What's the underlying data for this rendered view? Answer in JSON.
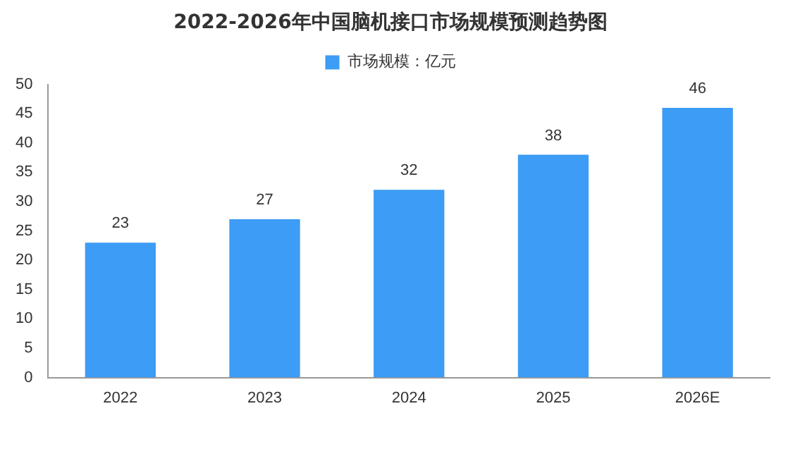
{
  "chart_data": {
    "type": "bar",
    "title": "2022-2026年中国脑机接口市场规模预测趋势图",
    "categories": [
      "2022",
      "2023",
      "2024",
      "2025",
      "2026E"
    ],
    "series": [
      {
        "name": "市场规模：亿元",
        "color": "#3d9cf5",
        "values": [
          23,
          27,
          32,
          38,
          46
        ]
      }
    ],
    "ylim": [
      0,
      50
    ],
    "yticks": [
      0,
      5,
      10,
      15,
      20,
      25,
      30,
      35,
      40,
      45,
      50
    ],
    "grid": false,
    "legend": "top",
    "data_labels": true
  }
}
